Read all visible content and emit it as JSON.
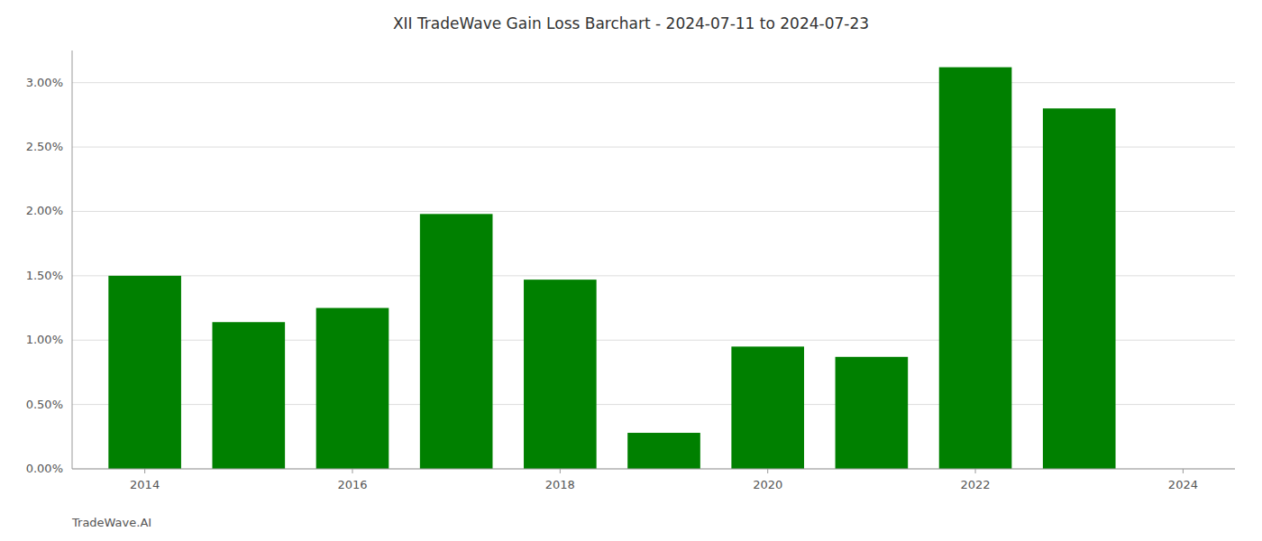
{
  "chart_data": {
    "type": "bar",
    "title": "XII TradeWave Gain Loss Barchart - 2024-07-11 to 2024-07-23",
    "annotations": [
      "TradeWave.AI"
    ],
    "x": [
      2014,
      2015,
      2016,
      2017,
      2018,
      2019,
      2020,
      2021,
      2022,
      2023
    ],
    "values": [
      0.015,
      0.0114,
      0.0125,
      0.0198,
      0.0147,
      0.0028,
      0.0095,
      0.0087,
      0.0312,
      0.028
    ],
    "color": "#008000",
    "xlim": [
      2013.3,
      2024.5
    ],
    "xticks": [
      2014,
      2016,
      2018,
      2020,
      2022,
      2024
    ],
    "ylim": [
      0,
      0.0325
    ],
    "yticks": [
      {
        "value": 0.0,
        "label": "0.00%"
      },
      {
        "value": 0.005,
        "label": "0.50%"
      },
      {
        "value": 0.01,
        "label": "1.00%"
      },
      {
        "value": 0.015,
        "label": "1.50%"
      },
      {
        "value": 0.02,
        "label": "2.00%"
      },
      {
        "value": 0.025,
        "label": "2.50%"
      },
      {
        "value": 0.03,
        "label": "3.00%"
      }
    ],
    "grid": true
  }
}
